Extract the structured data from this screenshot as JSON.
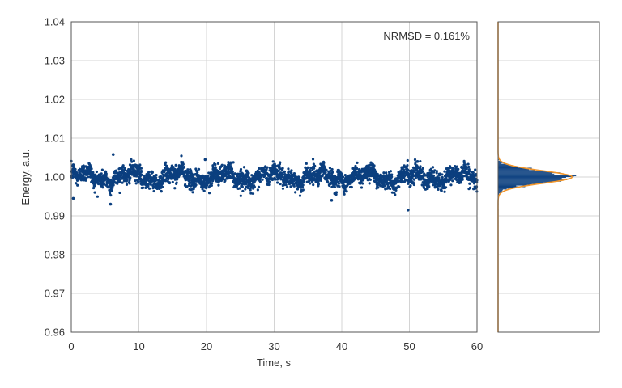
{
  "chart_data": [
    {
      "type": "scatter",
      "xlabel": "Time, s",
      "ylabel": "Energy, a.u.",
      "annotation": "NRMSD = 0.161%",
      "xlim": [
        0,
        60
      ],
      "ylim": [
        0.96,
        1.04
      ],
      "xticks": [
        0,
        10,
        20,
        30,
        40,
        50,
        60
      ],
      "yticks": [
        "0.96",
        "0.97",
        "0.98",
        "0.99",
        "1.00",
        "1.01",
        "1.02",
        "1.03",
        "1.04"
      ],
      "grid": true,
      "series_color": "#0b3f7f",
      "mean": 1.0,
      "std": 0.00161,
      "n_points": 3000,
      "notable_points": [
        {
          "x": 0.3,
          "y": 0.9945
        },
        {
          "x": 6.2,
          "y": 1.0058
        },
        {
          "x": 5.8,
          "y": 0.993
        },
        {
          "x": 19.8,
          "y": 1.0045
        },
        {
          "x": 38.5,
          "y": 0.994
        },
        {
          "x": 49.8,
          "y": 0.9915
        },
        {
          "x": 51.2,
          "y": 1.004
        }
      ]
    },
    {
      "type": "histogram",
      "orientation": "horizontal",
      "ylim": [
        0.96,
        1.04
      ],
      "bar_color": "#0b3f7f",
      "fit_line": "gaussian",
      "fit_color": "#f2962b",
      "fit_mean": 1.0,
      "fit_std": 0.00161
    }
  ]
}
